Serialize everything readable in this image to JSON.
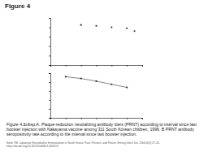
{
  "title": "Figure 4",
  "caption": "Figure 4.&nbsp;A. Plaque-reduction neutralizing antibody titers (PRNT) according to interval since last booster injection with Nakayama vaccine among 311 South Korean children, 1996. B PRNT antibody seropositivity rate according to the interval since last booster injection.",
  "source": "Sohn YM. Japanese Encephalitis Immunization in South Korea: Past, Present, and Future. Emerg Infect Dis. 2000;6(1):17-24. https://dx.doi.org/10.3201/eid0601.000103",
  "chart_data": [
    {
      "type": "scatter",
      "x": [
        2,
        3,
        4,
        5,
        5.5
      ],
      "values": [
        8.5,
        8.3,
        8,
        7.8,
        7.2
      ],
      "xlim": [
        0,
        6
      ],
      "ylim": [
        0,
        10
      ],
      "xticks": [
        0,
        1,
        2,
        3,
        4,
        5,
        6
      ],
      "yticks": [
        0,
        2,
        4,
        6,
        8,
        10
      ],
      "tick_labels": false,
      "color": "#333333",
      "marker": "circle"
    },
    {
      "type": "line",
      "x": [
        1,
        2,
        3,
        4,
        5
      ],
      "values": [
        92,
        88,
        82,
        75,
        68
      ],
      "xlim": [
        0,
        6
      ],
      "ylim": [
        0,
        100
      ],
      "xticks": [
        0,
        1,
        2,
        3,
        4,
        5,
        6
      ],
      "yticks": [
        0,
        20,
        40,
        60,
        80,
        100
      ],
      "tick_labels": false,
      "color": "#333333",
      "marker": "circle"
    }
  ]
}
